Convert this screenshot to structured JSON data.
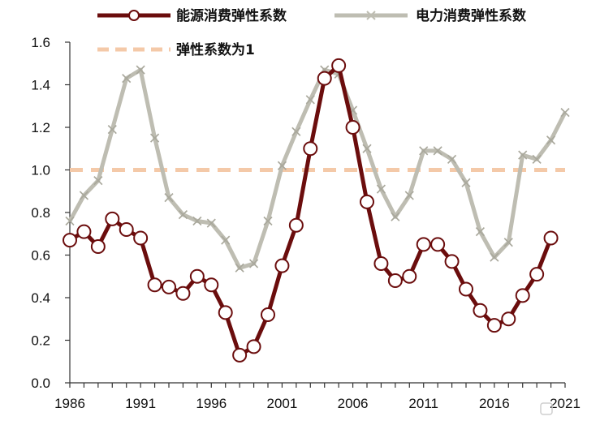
{
  "chart_data": {
    "type": "line",
    "title": "",
    "xlabel": "",
    "ylabel": "",
    "x": [
      1986,
      1987,
      1988,
      1989,
      1990,
      1991,
      1992,
      1993,
      1994,
      1995,
      1996,
      1997,
      1998,
      1999,
      2000,
      2001,
      2002,
      2003,
      2004,
      2005,
      2006,
      2007,
      2008,
      2009,
      2010,
      2011,
      2012,
      2013,
      2014,
      2015,
      2016,
      2017,
      2018,
      2019,
      2020,
      2021
    ],
    "xlim": [
      1986,
      2021
    ],
    "ylim": [
      0,
      1.6
    ],
    "x_ticks": [
      "1986",
      "1991",
      "1996",
      "2001",
      "2006",
      "2011",
      "2016",
      "2021"
    ],
    "y_ticks": [
      "0.0",
      "0.2",
      "0.4",
      "0.6",
      "0.8",
      "1.0",
      "1.2",
      "1.4",
      "1.6"
    ],
    "grid": false,
    "legend_position": "top",
    "series": [
      {
        "name": "能源消费弹性系数",
        "color": "#6b0d0d",
        "marker": "circle",
        "values": [
          0.67,
          0.71,
          0.64,
          0.77,
          0.72,
          0.68,
          0.46,
          0.45,
          0.42,
          0.5,
          0.46,
          0.33,
          0.13,
          0.17,
          0.32,
          0.55,
          0.74,
          1.1,
          1.43,
          1.49,
          1.2,
          0.85,
          0.56,
          0.48,
          0.5,
          0.65,
          0.65,
          0.57,
          0.44,
          0.34,
          0.27,
          0.3,
          0.41,
          0.51,
          0.68,
          null
        ]
      },
      {
        "name": "电力消费弹性系数",
        "color": "#bebdb2",
        "marker": "x",
        "values": [
          0.76,
          0.88,
          0.95,
          1.19,
          1.43,
          1.47,
          1.15,
          0.87,
          0.79,
          0.76,
          0.75,
          0.67,
          0.54,
          0.56,
          0.76,
          1.02,
          1.18,
          1.33,
          1.47,
          1.45,
          1.28,
          1.1,
          0.91,
          0.78,
          0.88,
          1.09,
          1.09,
          1.05,
          0.94,
          0.71,
          0.59,
          0.66,
          1.07,
          1.05,
          1.14,
          1.27
        ]
      },
      {
        "name": "弹性系数为1",
        "color": "#f4c9a8",
        "style": "dashed",
        "values": [
          1,
          1,
          1,
          1,
          1,
          1,
          1,
          1,
          1,
          1,
          1,
          1,
          1,
          1,
          1,
          1,
          1,
          1,
          1,
          1,
          1,
          1,
          1,
          1,
          1,
          1,
          1,
          1,
          1,
          1,
          1,
          1,
          1,
          1,
          1,
          1
        ]
      }
    ]
  }
}
